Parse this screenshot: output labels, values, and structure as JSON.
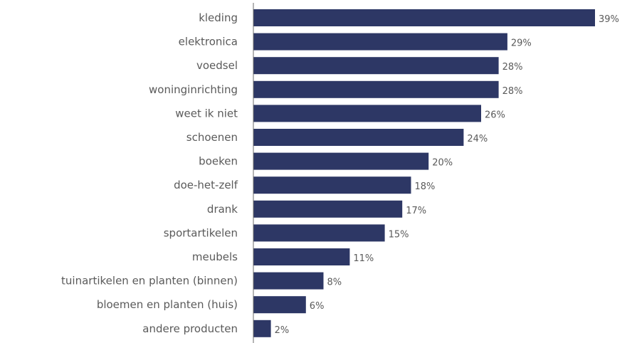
{
  "chart_data": {
    "type": "bar",
    "orientation": "horizontal",
    "categories": [
      "kleding",
      "elektronica",
      "voedsel",
      "woninginrichting",
      "weet ik niet",
      "schoenen",
      "boeken",
      "doe-het-zelf",
      "drank",
      "sportartikelen",
      "meubels",
      "tuinartikelen en planten (binnen)",
      "bloemen en planten (huis)",
      "andere producten"
    ],
    "values": [
      39,
      29,
      28,
      28,
      26,
      24,
      20,
      18,
      17,
      15,
      11,
      8,
      6,
      2
    ],
    "value_labels": [
      "39%",
      "29%",
      "28%",
      "28%",
      "26%",
      "24%",
      "20%",
      "18%",
      "17%",
      "15%",
      "11%",
      "8%",
      "6%",
      "2%"
    ],
    "unit": "%",
    "xlim": [
      0,
      39
    ],
    "grid": false,
    "legend": "none",
    "title": "",
    "xlabel": "",
    "ylabel": "",
    "colors": {
      "bar": "#2d3765",
      "label": "#5a5a5a",
      "axis": "#6b6b6b"
    }
  }
}
